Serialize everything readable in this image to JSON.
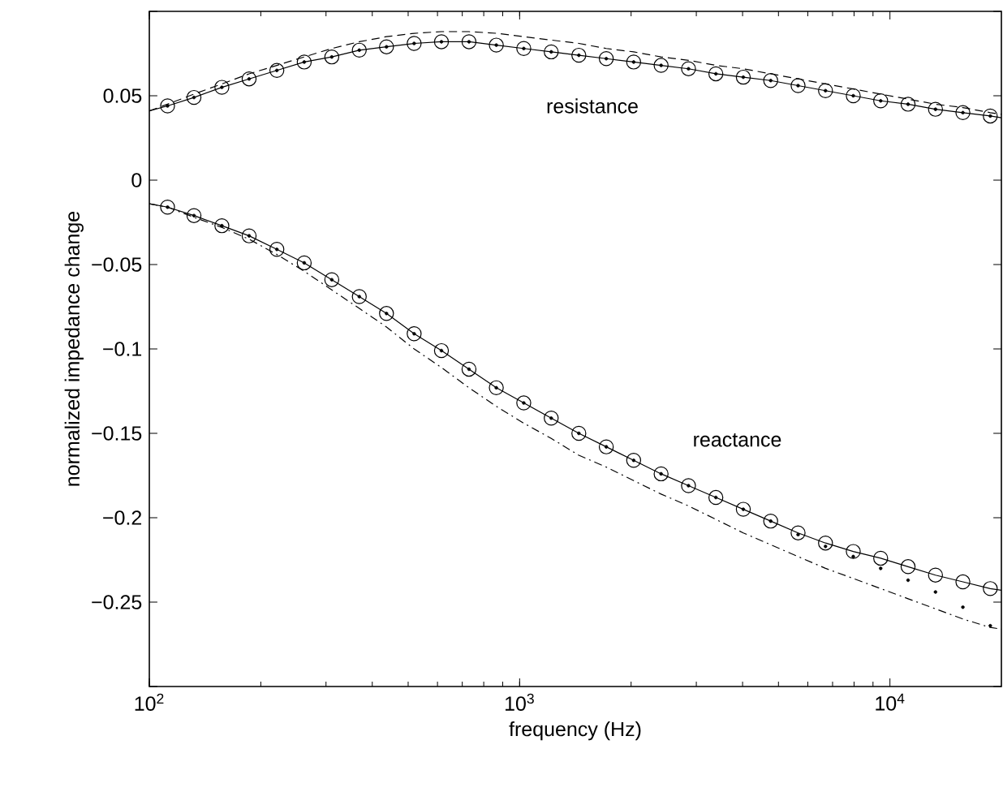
{
  "chart_data": {
    "type": "line",
    "xlabel": "frequency (Hz)",
    "ylabel": "normalized impedance change",
    "log": "x",
    "xlim": [
      100,
      20000
    ],
    "ylim": [
      -0.3,
      0.1
    ],
    "xticks": [
      {
        "value": 100,
        "label": "10$^{2}$"
      },
      {
        "value": 1000,
        "label": "10$^{3}$"
      },
      {
        "value": 10000,
        "label": "10$^{4}$"
      }
    ],
    "yticks": [
      {
        "value": -0.3,
        "label": null
      },
      {
        "value": -0.25,
        "label": "−0.25"
      },
      {
        "value": -0.2,
        "label": "−0.2"
      },
      {
        "value": -0.15,
        "label": "−0.15"
      },
      {
        "value": -0.1,
        "label": "−0.1"
      },
      {
        "value": -0.05,
        "label": "−0.05"
      },
      0,
      0.05,
      {
        "value": 0.1,
        "label": null
      }
    ],
    "annotations": [
      "resistance",
      "reactance"
    ],
    "x": [
      112,
      132,
      157,
      186,
      221,
      262,
      311,
      369,
      437,
      519,
      615,
      730,
      865,
      1026,
      1217,
      1445,
      1714,
      2032,
      2410,
      2858,
      3388,
      4018,
      4764,
      5649,
      6699,
      7962,
      9441,
      11194,
      13274,
      15740,
      18664
    ],
    "series": [
      {
        "color": "#000000",
        "line_style": "solid",
        "x": [
          100,
          112,
          132,
          157,
          186,
          221,
          262,
          311,
          369,
          437,
          519,
          615,
          730,
          865,
          1026,
          1217,
          1445,
          1714,
          2032,
          2410,
          2858,
          3388,
          4018,
          4764,
          5649,
          6699,
          7962,
          9441,
          11194,
          13274,
          15740,
          18664,
          20000
        ],
        "values": [
          0.041,
          0.044,
          0.049,
          0.055,
          0.06,
          0.065,
          0.07,
          0.073,
          0.077,
          0.079,
          0.081,
          0.082,
          0.082,
          0.08,
          0.078,
          0.076,
          0.074,
          0.072,
          0.07,
          0.068,
          0.066,
          0.063,
          0.061,
          0.059,
          0.056,
          0.053,
          0.05,
          0.047,
          0.045,
          0.042,
          0.04,
          0.038,
          0.037
        ]
      },
      {
        "color": "#000000",
        "line_style": "dashed",
        "x": [
          100,
          112,
          132,
          157,
          186,
          221,
          262,
          311,
          369,
          437,
          519,
          615,
          730,
          865,
          1026,
          1217,
          1445,
          1714,
          2032,
          2410,
          2858,
          3388,
          4018,
          4764,
          5649,
          6699,
          7962,
          9441,
          11194,
          13274,
          15740,
          18664,
          20000
        ],
        "values": [
          0.041,
          0.045,
          0.051,
          0.057,
          0.063,
          0.068,
          0.073,
          0.078,
          0.082,
          0.085,
          0.087,
          0.088,
          0.088,
          0.087,
          0.085,
          0.083,
          0.081,
          0.078,
          0.076,
          0.073,
          0.071,
          0.068,
          0.066,
          0.063,
          0.06,
          0.057,
          0.054,
          0.051,
          0.048,
          0.045,
          0.043,
          0.04,
          0.039
        ]
      },
      {
        "type": "scatter",
        "color": "#000000",
        "marker": "circle",
        "values": [
          0.044,
          0.049,
          0.055,
          0.06,
          0.065,
          0.07,
          0.073,
          0.077,
          0.079,
          0.081,
          0.082,
          0.082,
          0.08,
          0.078,
          0.076,
          0.074,
          0.072,
          0.07,
          0.068,
          0.066,
          0.063,
          0.061,
          0.059,
          0.056,
          0.053,
          0.05,
          0.047,
          0.045,
          0.042,
          0.04,
          0.038
        ]
      },
      {
        "type": "scatter",
        "color": "#000000",
        "marker": "dot",
        "values": [
          0.044,
          0.049,
          0.055,
          0.06,
          0.065,
          0.07,
          0.073,
          0.077,
          0.079,
          0.081,
          0.082,
          0.082,
          0.08,
          0.078,
          0.076,
          0.074,
          0.072,
          0.07,
          0.068,
          0.066,
          0.063,
          0.061,
          0.059,
          0.056,
          0.053,
          0.05,
          0.047,
          0.045,
          0.042,
          0.04,
          0.038
        ]
      },
      {
        "color": "#000000",
        "line_style": "solid",
        "x": [
          100,
          112,
          132,
          157,
          186,
          221,
          262,
          311,
          369,
          437,
          519,
          615,
          730,
          865,
          1026,
          1217,
          1445,
          1714,
          2032,
          2410,
          2858,
          3388,
          4018,
          4764,
          5649,
          6699,
          7962,
          9441,
          11194,
          13274,
          15740,
          18664,
          20000
        ],
        "values": [
          -0.014,
          -0.016,
          -0.021,
          -0.027,
          -0.033,
          -0.041,
          -0.049,
          -0.059,
          -0.069,
          -0.079,
          -0.091,
          -0.101,
          -0.112,
          -0.123,
          -0.132,
          -0.141,
          -0.15,
          -0.158,
          -0.166,
          -0.174,
          -0.181,
          -0.188,
          -0.195,
          -0.202,
          -0.209,
          -0.215,
          -0.22,
          -0.224,
          -0.229,
          -0.234,
          -0.238,
          -0.242,
          -0.243
        ]
      },
      {
        "color": "#000000",
        "line_style": "dashdot",
        "x": [
          100,
          112,
          132,
          157,
          186,
          221,
          262,
          311,
          369,
          437,
          519,
          615,
          730,
          865,
          1026,
          1217,
          1445,
          1714,
          2032,
          2410,
          2858,
          3388,
          4018,
          4764,
          5649,
          6699,
          7962,
          9441,
          11194,
          13274,
          15740,
          18664,
          20000
        ],
        "values": [
          -0.014,
          -0.016,
          -0.022,
          -0.028,
          -0.035,
          -0.044,
          -0.054,
          -0.065,
          -0.076,
          -0.087,
          -0.1,
          -0.111,
          -0.123,
          -0.134,
          -0.144,
          -0.153,
          -0.163,
          -0.17,
          -0.178,
          -0.186,
          -0.193,
          -0.201,
          -0.209,
          -0.216,
          -0.223,
          -0.23,
          -0.236,
          -0.242,
          -0.248,
          -0.254,
          -0.26,
          -0.265,
          -0.266
        ]
      },
      {
        "type": "scatter",
        "color": "#000000",
        "marker": "circle",
        "values": [
          -0.016,
          -0.021,
          -0.027,
          -0.033,
          -0.041,
          -0.049,
          -0.059,
          -0.069,
          -0.079,
          -0.091,
          -0.101,
          -0.112,
          -0.123,
          -0.132,
          -0.141,
          -0.15,
          -0.158,
          -0.166,
          -0.174,
          -0.181,
          -0.188,
          -0.195,
          -0.202,
          -0.209,
          -0.215,
          -0.22,
          -0.224,
          -0.229,
          -0.234,
          -0.238,
          -0.242
        ]
      },
      {
        "type": "scatter",
        "color": "#000000",
        "marker": "dot",
        "values": [
          -0.016,
          -0.021,
          -0.027,
          -0.033,
          -0.041,
          -0.049,
          -0.059,
          -0.069,
          -0.079,
          -0.091,
          -0.101,
          -0.112,
          -0.123,
          -0.132,
          -0.141,
          -0.15,
          -0.158,
          -0.166,
          -0.174,
          -0.181,
          -0.188,
          -0.195,
          -0.202,
          -0.21,
          -0.217,
          -0.223,
          -0.23,
          -0.237,
          -0.244,
          -0.253,
          -0.264
        ]
      }
    ]
  }
}
